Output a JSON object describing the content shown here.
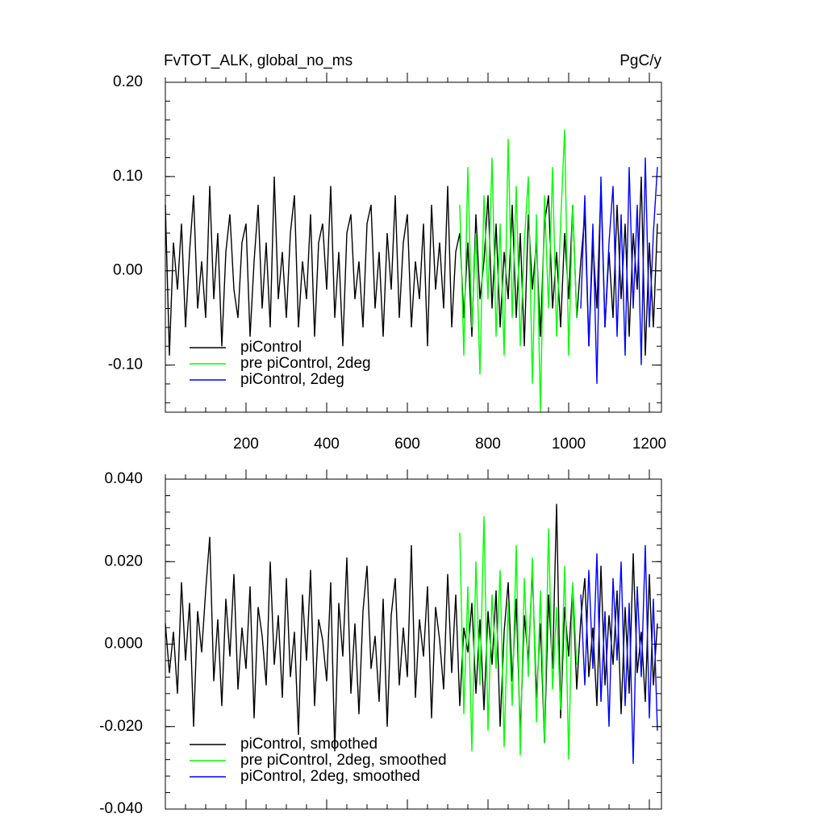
{
  "chart_data": [
    {
      "type": "line",
      "title": "FvTOT_ALK, global_no_ms",
      "units_label": "PgC/y",
      "xlim": [
        0,
        1230
      ],
      "xticks": [
        200,
        400,
        600,
        800,
        1000,
        1200
      ],
      "show_xtick_labels": true,
      "ylim": [
        -0.15,
        0.2
      ],
      "yticks": [
        {
          "value": 0.2,
          "label": "0.20"
        },
        {
          "value": 0.1,
          "label": "0.10"
        },
        {
          "value": 0,
          "label": "0.00"
        },
        {
          "value": -0.1,
          "label": "-0.10"
        }
      ],
      "legend": "lower left",
      "series": [
        {
          "name": "piControl",
          "color": "#000000",
          "x": [
            0,
            10,
            20,
            30,
            40,
            50,
            60,
            70,
            80,
            90,
            100,
            110,
            120,
            130,
            140,
            150,
            160,
            170,
            180,
            190,
            200,
            210,
            220,
            230,
            240,
            250,
            260,
            270,
            280,
            290,
            300,
            310,
            320,
            330,
            340,
            350,
            360,
            370,
            380,
            390,
            400,
            410,
            420,
            430,
            440,
            450,
            460,
            470,
            480,
            490,
            500,
            510,
            520,
            530,
            540,
            550,
            560,
            570,
            580,
            590,
            600,
            610,
            620,
            630,
            640,
            650,
            660,
            670,
            680,
            690,
            700,
            710,
            720,
            730,
            740,
            750,
            760,
            770,
            780,
            790,
            800,
            810,
            820,
            830,
            840,
            850,
            860,
            870,
            880,
            890,
            900,
            910,
            920,
            930,
            940,
            950,
            960,
            970,
            980,
            990,
            1000,
            1010,
            1020,
            1030,
            1040,
            1050,
            1060,
            1070,
            1080,
            1090,
            1100,
            1110,
            1120,
            1130,
            1140,
            1150,
            1160,
            1170,
            1180,
            1190,
            1200,
            1210,
            1220
          ],
          "values": [
            0.07,
            -0.09,
            0.03,
            -0.02,
            0.05,
            -0.06,
            0.02,
            0.08,
            -0.04,
            0.01,
            -0.05,
            0.09,
            -0.03,
            0.04,
            -0.08,
            0.02,
            0.06,
            -0.02,
            -0.05,
            0.03,
            0.05,
            -0.07,
            0.01,
            0.07,
            -0.04,
            0.03,
            -0.06,
            0.1,
            -0.03,
            0.02,
            -0.05,
            0.04,
            0.08,
            -0.06,
            0.01,
            -0.03,
            0.06,
            -0.07,
            0.03,
            0.05,
            -0.02,
            0.09,
            -0.05,
            0.02,
            -0.08,
            0.04,
            0.06,
            -0.03,
            0.01,
            -0.06,
            0.05,
            0.07,
            -0.04,
            0.02,
            -0.07,
            0.04,
            -0.02,
            0.08,
            -0.05,
            0.03,
            0.06,
            -0.06,
            0.01,
            -0.03,
            0.05,
            -0.08,
            0.07,
            -0.02,
            0.03,
            -0.04,
            0.09,
            -0.06,
            0.02,
            0.04,
            -0.05,
            0.03,
            -0.07,
            0.06,
            -0.03,
            0.01,
            0.08,
            -0.04,
            0.05,
            -0.06,
            0.02,
            -0.03,
            0.07,
            -0.05,
            0.04,
            -0.08,
            0.06,
            -0.02,
            0.03,
            -0.07,
            0.05,
            0.08,
            -0.04,
            0.02,
            -0.06,
            0.04,
            -0.03,
            0.07,
            -0.05,
            0.01,
            0.06,
            -0.08,
            0.03,
            -0.04,
            0.09,
            -0.06,
            0.02,
            -0.05,
            0.07,
            -0.03,
            0.05,
            -0.07,
            0.04,
            -0.02,
            0.1,
            -0.09,
            0.03,
            -0.06,
            0.05
          ]
        },
        {
          "name": "pre piControl, 2deg",
          "color": "#00ff00",
          "x": [
            730,
            740,
            750,
            760,
            770,
            780,
            790,
            800,
            810,
            820,
            830,
            840,
            850,
            860,
            870,
            880,
            890,
            900,
            910,
            920,
            930,
            940,
            950,
            960,
            970,
            980,
            990,
            1000,
            1010,
            1020
          ],
          "values": [
            0.07,
            -0.09,
            0.11,
            -0.06,
            0.04,
            -0.11,
            0.08,
            -0.03,
            0.12,
            -0.07,
            0.05,
            -0.09,
            0.14,
            -0.05,
            0.09,
            -0.08,
            0.03,
            0.1,
            -0.12,
            0.06,
            -0.15,
            0.08,
            -0.04,
            0.11,
            -0.07,
            0.05,
            0.15,
            -0.09,
            0.07,
            -0.05
          ]
        },
        {
          "name": "piControl, 2deg",
          "color": "#0000ff",
          "x": [
            1030,
            1040,
            1050,
            1060,
            1070,
            1080,
            1090,
            1100,
            1110,
            1120,
            1130,
            1140,
            1150,
            1160,
            1170,
            1180,
            1190,
            1200,
            1210,
            1220
          ],
          "values": [
            -0.04,
            0.08,
            -0.08,
            0.05,
            -0.12,
            0.1,
            -0.06,
            0.03,
            0.09,
            -0.07,
            0.06,
            -0.09,
            0.11,
            -0.04,
            0.07,
            -0.1,
            0.12,
            -0.06,
            0.04,
            0.11
          ]
        }
      ]
    },
    {
      "type": "line",
      "xlim": [
        0,
        1230
      ],
      "xticks": [
        200,
        400,
        600,
        800,
        1000,
        1200
      ],
      "show_xtick_labels": false,
      "ylim": [
        -0.04,
        0.04
      ],
      "yticks": [
        {
          "value": 0.04,
          "label": "0.040"
        },
        {
          "value": 0.02,
          "label": "0.020"
        },
        {
          "value": 0,
          "label": "0.000"
        },
        {
          "value": -0.02,
          "label": "-0.020"
        },
        {
          "value": -0.04,
          "label": "-0.040"
        }
      ],
      "legend": "lower left",
      "series": [
        {
          "name": "piControl, smoothed",
          "color": "#000000",
          "x": [
            0,
            10,
            20,
            30,
            40,
            50,
            60,
            70,
            80,
            90,
            100,
            110,
            120,
            130,
            140,
            150,
            160,
            170,
            180,
            190,
            200,
            210,
            220,
            230,
            240,
            250,
            260,
            270,
            280,
            290,
            300,
            310,
            320,
            330,
            340,
            350,
            360,
            370,
            380,
            390,
            400,
            410,
            420,
            430,
            440,
            450,
            460,
            470,
            480,
            490,
            500,
            510,
            520,
            530,
            540,
            550,
            560,
            570,
            580,
            590,
            600,
            610,
            620,
            630,
            640,
            650,
            660,
            670,
            680,
            690,
            700,
            710,
            720,
            730,
            740,
            750,
            760,
            770,
            780,
            790,
            800,
            810,
            820,
            830,
            840,
            850,
            860,
            870,
            880,
            890,
            900,
            910,
            920,
            930,
            940,
            950,
            960,
            970,
            980,
            990,
            1000,
            1010,
            1020,
            1030,
            1040,
            1050,
            1060,
            1070,
            1080,
            1090,
            1100,
            1110,
            1120,
            1130,
            1140,
            1150,
            1160,
            1170,
            1180,
            1190,
            1200,
            1210,
            1220
          ],
          "values": [
            0.005,
            -0.007,
            0.003,
            -0.012,
            0.015,
            -0.004,
            0.01,
            -0.02,
            0.008,
            -0.002,
            0.013,
            0.026,
            -0.009,
            0.006,
            -0.015,
            0.011,
            -0.003,
            0.017,
            -0.011,
            0.004,
            -0.006,
            0.014,
            -0.018,
            0.009,
            0.002,
            -0.01,
            0.02,
            -0.005,
            0.007,
            -0.013,
            0.016,
            -0.008,
            0.003,
            -0.022,
            0.012,
            -0.004,
            0.018,
            -0.015,
            0.006,
            0.001,
            -0.009,
            0.015,
            -0.026,
            0.01,
            -0.003,
            0.021,
            -0.012,
            0.005,
            -0.017,
            0.008,
            0.019,
            -0.006,
            0.002,
            -0.014,
            0.011,
            -0.02,
            0.007,
            0.016,
            -0.01,
            0.004,
            -0.008,
            0.024,
            -0.013,
            0.006,
            -0.003,
            0.014,
            -0.018,
            0.009,
            0.001,
            -0.011,
            0.017,
            -0.007,
            0.012,
            -0.015,
            0.004,
            -0.002,
            0.01,
            -0.012,
            0.006,
            -0.016,
            0.008,
            -0.005,
            0.013,
            -0.02,
            0.003,
            0.015,
            -0.009,
            0.011,
            -0.022,
            0.007,
            -0.004,
            0.018,
            -0.013,
            0.005,
            -0.024,
            0.012,
            -0.006,
            0.034,
            -0.018,
            0.009,
            -0.003,
            0.014,
            -0.011,
            0.006,
            0.016,
            -0.008,
            0.004,
            -0.015,
            0.019,
            -0.01,
            0.007,
            -0.005,
            0.013,
            -0.017,
            0.009,
            -0.012,
            0.022,
            -0.007,
            0.003,
            -0.014,
            0.017,
            -0.01,
            0.005
          ]
        },
        {
          "name": "pre piControl, 2deg, smoothed",
          "color": "#00ff00",
          "x": [
            730,
            740,
            750,
            760,
            770,
            780,
            790,
            800,
            810,
            820,
            830,
            840,
            850,
            860,
            870,
            880,
            890,
            900,
            910,
            920,
            930,
            940,
            950,
            960,
            970,
            980,
            990,
            1000,
            1010,
            1020
          ],
          "values": [
            0.027,
            -0.017,
            0.014,
            -0.026,
            0.02,
            -0.01,
            0.031,
            -0.021,
            0.012,
            -0.006,
            0.018,
            -0.025,
            0.01,
            -0.015,
            0.024,
            -0.027,
            0.016,
            -0.008,
            0.021,
            -0.019,
            0.013,
            -0.024,
            0.028,
            -0.011,
            0.009,
            -0.016,
            0.019,
            -0.028,
            0.015,
            -0.005
          ]
        },
        {
          "name": "piControl, 2deg, smoothed",
          "color": "#0000ff",
          "x": [
            1030,
            1040,
            1050,
            1060,
            1070,
            1080,
            1090,
            1100,
            1110,
            1120,
            1130,
            1140,
            1150,
            1160,
            1170,
            1180,
            1190,
            1200,
            1210,
            1220
          ],
          "values": [
            0.012,
            -0.01,
            0.018,
            -0.006,
            0.022,
            -0.014,
            0.008,
            -0.02,
            0.016,
            -0.004,
            0.02,
            -0.015,
            0.01,
            -0.029,
            0.014,
            -0.008,
            0.024,
            -0.018,
            0.011,
            -0.021
          ]
        }
      ]
    }
  ]
}
